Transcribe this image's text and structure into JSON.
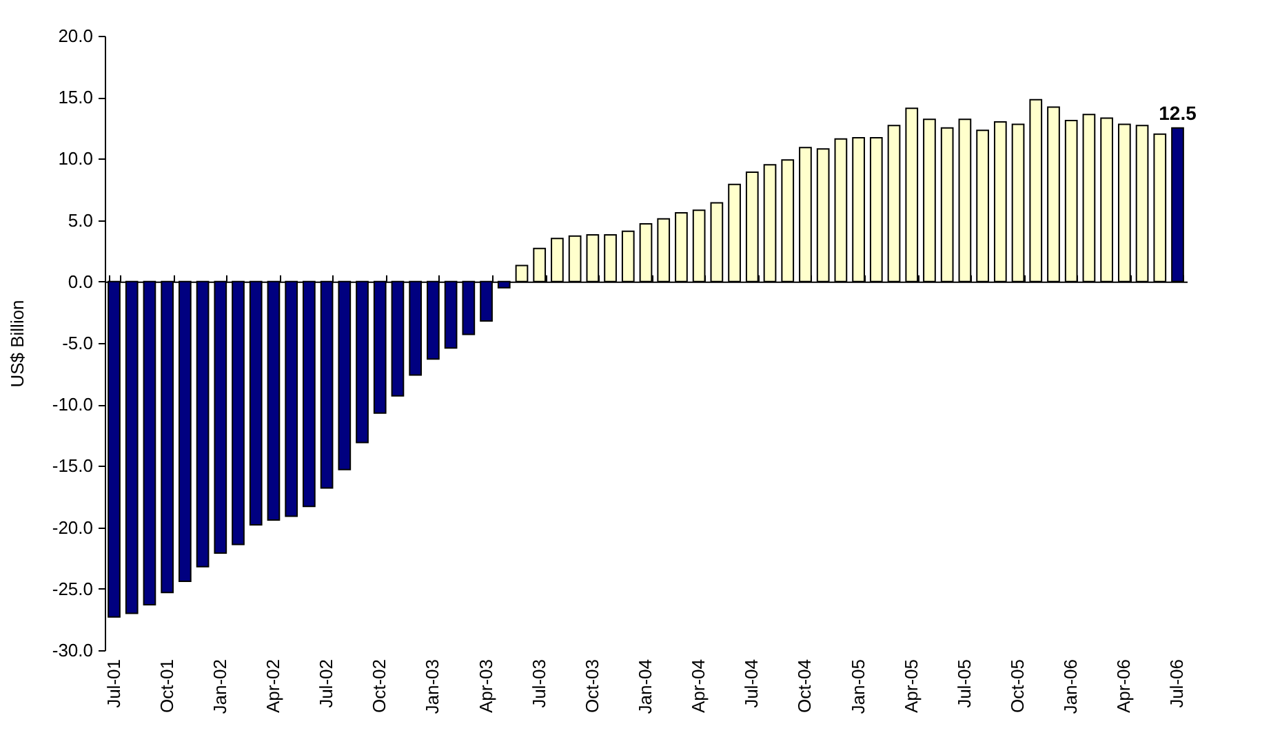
{
  "chart_data": {
    "type": "bar",
    "ylabel": "US$ Billion",
    "categories": [
      "Jul-01",
      null,
      null,
      "Oct-01",
      null,
      null,
      "Jan-02",
      null,
      null,
      "Apr-02",
      null,
      null,
      "Jul-02",
      null,
      null,
      "Oct-02",
      null,
      null,
      "Jan-03",
      null,
      null,
      "Apr-03",
      null,
      null,
      "Jul-03",
      null,
      null,
      "Oct-03",
      null,
      null,
      "Jan-04",
      null,
      null,
      "Apr-04",
      null,
      null,
      "Jul-04",
      null,
      null,
      "Oct-04",
      null,
      null,
      "Jan-05",
      null,
      null,
      "Apr-05",
      null,
      null,
      "Jul-05",
      null,
      null,
      "Oct-05",
      null,
      null,
      "Jan-06",
      null,
      null,
      "Apr-06",
      null,
      null,
      "Jul-06"
    ],
    "values": [
      -27.3,
      -27.0,
      -26.3,
      -25.3,
      -24.4,
      -23.2,
      -22.1,
      -21.4,
      -19.8,
      -19.4,
      -19.1,
      -18.3,
      -16.8,
      -15.3,
      -13.1,
      -10.7,
      -9.3,
      -7.6,
      -6.3,
      -5.4,
      -4.3,
      -3.2,
      -0.5,
      1.3,
      2.7,
      3.5,
      3.7,
      3.8,
      3.8,
      4.1,
      4.7,
      5.1,
      5.6,
      5.8,
      6.4,
      7.9,
      8.9,
      9.5,
      9.9,
      10.9,
      10.8,
      11.6,
      11.7,
      11.7,
      12.7,
      14.1,
      13.2,
      12.5,
      13.2,
      12.3,
      13.0,
      12.8,
      14.8,
      14.2,
      13.1,
      13.6,
      13.3,
      12.8,
      12.7,
      12.0,
      12.5
    ],
    "colors": [
      "#000080",
      "#000080",
      "#000080",
      "#000080",
      "#000080",
      "#000080",
      "#000080",
      "#000080",
      "#000080",
      "#000080",
      "#000080",
      "#000080",
      "#000080",
      "#000080",
      "#000080",
      "#000080",
      "#000080",
      "#000080",
      "#000080",
      "#000080",
      "#000080",
      "#000080",
      "#000080",
      "#ffffcc",
      "#ffffcc",
      "#ffffcc",
      "#ffffcc",
      "#ffffcc",
      "#ffffcc",
      "#ffffcc",
      "#ffffcc",
      "#ffffcc",
      "#ffffcc",
      "#ffffcc",
      "#ffffcc",
      "#ffffcc",
      "#ffffcc",
      "#ffffcc",
      "#ffffcc",
      "#ffffcc",
      "#ffffcc",
      "#ffffcc",
      "#ffffcc",
      "#ffffcc",
      "#ffffcc",
      "#ffffcc",
      "#ffffcc",
      "#ffffcc",
      "#ffffcc",
      "#ffffcc",
      "#ffffcc",
      "#ffffcc",
      "#ffffcc",
      "#ffffcc",
      "#ffffcc",
      "#ffffcc",
      "#ffffcc",
      "#ffffcc",
      "#ffffcc",
      "#ffffcc",
      "#000080"
    ],
    "value_labels": [
      null,
      null,
      null,
      null,
      null,
      null,
      null,
      null,
      null,
      null,
      null,
      null,
      null,
      null,
      null,
      null,
      null,
      null,
      null,
      null,
      null,
      null,
      null,
      null,
      null,
      null,
      null,
      null,
      null,
      null,
      null,
      null,
      null,
      null,
      null,
      null,
      null,
      null,
      null,
      null,
      null,
      null,
      null,
      null,
      null,
      null,
      null,
      null,
      null,
      null,
      null,
      null,
      null,
      null,
      null,
      null,
      null,
      null,
      null,
      null,
      "12.5"
    ],
    "yticks": [
      {
        "value": -30,
        "label": "-30.0"
      },
      {
        "value": -25,
        "label": "-25.0"
      },
      {
        "value": -20,
        "label": "-20.0"
      },
      {
        "value": -15,
        "label": "-15.0"
      },
      {
        "value": -10,
        "label": "-10.0"
      },
      {
        "value": -5,
        "label": "-5.0"
      },
      {
        "value": 0,
        "label": "0.0"
      },
      {
        "value": 5,
        "label": "5.0"
      },
      {
        "value": 10,
        "label": "10.0"
      },
      {
        "value": 15,
        "label": "15.0"
      },
      {
        "value": 20,
        "label": "20.0"
      }
    ],
    "ylim": [
      -30,
      20
    ]
  }
}
